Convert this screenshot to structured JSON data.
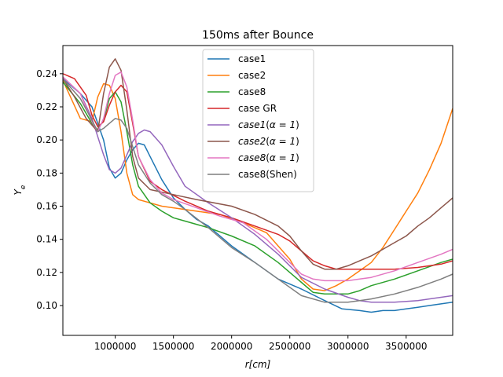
{
  "chart_data": {
    "type": "line",
    "title": "150ms after Bounce",
    "xlabel": "r[cm]",
    "ylabel": "Y_e",
    "xlim": [
      550000,
      3900000
    ],
    "ylim": [
      0.082,
      0.257
    ],
    "xticks": [
      1000000,
      1500000,
      2000000,
      2500000,
      3000000,
      3500000
    ],
    "xtick_labels": [
      "1000000",
      "1500000",
      "2000000",
      "2500000",
      "3000000",
      "3500000"
    ],
    "yticks": [
      0.1,
      0.12,
      0.14,
      0.16,
      0.18,
      0.2,
      0.22,
      0.24
    ],
    "ytick_labels": [
      "0.10",
      "0.12",
      "0.14",
      "0.16",
      "0.18",
      "0.20",
      "0.22",
      "0.24"
    ],
    "grid": false,
    "legend_position": "top-center",
    "series": [
      {
        "name": "case1",
        "color": "#1f77b4",
        "x": [
          550000,
          700000,
          800000,
          900000,
          950000,
          1000000,
          1050000,
          1100000,
          1150000,
          1200000,
          1250000,
          1300000,
          1400000,
          1500000,
          1600000,
          1700000,
          1800000,
          2000000,
          2200000,
          2400000,
          2600000,
          2800000,
          2950000,
          3100000,
          3200000,
          3300000,
          3400000,
          3500000,
          3600000,
          3700000,
          3800000,
          3900000
        ],
        "y": [
          0.237,
          0.228,
          0.22,
          0.2,
          0.183,
          0.177,
          0.18,
          0.188,
          0.194,
          0.198,
          0.197,
          0.19,
          0.176,
          0.165,
          0.158,
          0.152,
          0.148,
          0.136,
          0.126,
          0.116,
          0.11,
          0.103,
          0.098,
          0.097,
          0.096,
          0.097,
          0.097,
          0.098,
          0.099,
          0.1,
          0.101,
          0.102
        ]
      },
      {
        "name": "case2",
        "color": "#ff7f0e",
        "x": [
          550000,
          700000,
          800000,
          850000,
          900000,
          950000,
          1000000,
          1050000,
          1100000,
          1150000,
          1200000,
          1300000,
          1400000,
          1500000,
          1700000,
          1900000,
          2100000,
          2300000,
          2500000,
          2600000,
          2700000,
          2800000,
          2900000,
          3000000,
          3100000,
          3200000,
          3300000,
          3400000,
          3500000,
          3600000,
          3700000,
          3800000,
          3900000
        ],
        "y": [
          0.236,
          0.213,
          0.211,
          0.226,
          0.234,
          0.233,
          0.225,
          0.205,
          0.18,
          0.167,
          0.164,
          0.162,
          0.16,
          0.159,
          0.157,
          0.155,
          0.15,
          0.144,
          0.128,
          0.116,
          0.11,
          0.109,
          0.112,
          0.116,
          0.121,
          0.126,
          0.135,
          0.146,
          0.157,
          0.168,
          0.182,
          0.198,
          0.219
        ]
      },
      {
        "name": "case8",
        "color": "#2ca02c",
        "x": [
          550000,
          700000,
          800000,
          850000,
          900000,
          950000,
          1000000,
          1050000,
          1100000,
          1150000,
          1200000,
          1300000,
          1400000,
          1500000,
          1600000,
          1800000,
          2000000,
          2200000,
          2400000,
          2600000,
          2700000,
          2800000,
          2900000,
          3000000,
          3100000,
          3200000,
          3400000,
          3600000,
          3800000,
          3900000
        ],
        "y": [
          0.235,
          0.222,
          0.21,
          0.206,
          0.212,
          0.225,
          0.229,
          0.223,
          0.205,
          0.185,
          0.172,
          0.162,
          0.157,
          0.153,
          0.151,
          0.147,
          0.142,
          0.136,
          0.126,
          0.114,
          0.108,
          0.107,
          0.107,
          0.107,
          0.109,
          0.112,
          0.116,
          0.121,
          0.126,
          0.128
        ]
      },
      {
        "name": "case GR",
        "color": "#d62728",
        "x": [
          550000,
          650000,
          750000,
          800000,
          850000,
          900000,
          950000,
          1000000,
          1050000,
          1100000,
          1150000,
          1200000,
          1300000,
          1400000,
          1600000,
          1800000,
          2000000,
          2200000,
          2400000,
          2500000,
          2600000,
          2700000,
          2800000,
          2900000,
          3000000,
          3200000,
          3400000,
          3600000,
          3800000,
          3900000
        ],
        "y": [
          0.24,
          0.237,
          0.227,
          0.215,
          0.208,
          0.211,
          0.221,
          0.229,
          0.233,
          0.229,
          0.21,
          0.19,
          0.175,
          0.17,
          0.163,
          0.157,
          0.153,
          0.148,
          0.143,
          0.139,
          0.133,
          0.127,
          0.124,
          0.122,
          0.122,
          0.122,
          0.122,
          0.123,
          0.125,
          0.127
        ]
      },
      {
        "name": "$case1(\\alpha=1)$",
        "color": "#9467bd",
        "x": [
          550000,
          700000,
          800000,
          900000,
          950000,
          1000000,
          1050000,
          1100000,
          1150000,
          1200000,
          1250000,
          1300000,
          1400000,
          1500000,
          1600000,
          1800000,
          2000000,
          2200000,
          2400000,
          2600000,
          2800000,
          3000000,
          3100000,
          3200000,
          3400000,
          3600000,
          3800000,
          3900000
        ],
        "y": [
          0.238,
          0.228,
          0.213,
          0.191,
          0.182,
          0.18,
          0.183,
          0.191,
          0.199,
          0.204,
          0.206,
          0.205,
          0.197,
          0.184,
          0.172,
          0.162,
          0.153,
          0.143,
          0.131,
          0.117,
          0.11,
          0.105,
          0.103,
          0.102,
          0.102,
          0.103,
          0.105,
          0.106
        ]
      },
      {
        "name": "$case2(\\alpha=1)$",
        "color": "#8c564b",
        "x": [
          550000,
          650000,
          750000,
          850000,
          900000,
          950000,
          1000000,
          1050000,
          1100000,
          1150000,
          1200000,
          1300000,
          1500000,
          1700000,
          2000000,
          2200000,
          2400000,
          2500000,
          2600000,
          2700000,
          2800000,
          2900000,
          3000000,
          3100000,
          3200000,
          3300000,
          3400000,
          3500000,
          3600000,
          3700000,
          3800000,
          3900000
        ],
        "y": [
          0.237,
          0.226,
          0.213,
          0.205,
          0.228,
          0.244,
          0.249,
          0.242,
          0.218,
          0.19,
          0.177,
          0.17,
          0.167,
          0.164,
          0.16,
          0.155,
          0.148,
          0.142,
          0.133,
          0.125,
          0.122,
          0.122,
          0.124,
          0.127,
          0.13,
          0.134,
          0.138,
          0.142,
          0.148,
          0.153,
          0.159,
          0.165
        ]
      },
      {
        "name": "$case8(\\alpha=1)$",
        "color": "#e377c2",
        "x": [
          550000,
          700000,
          800000,
          850000,
          900000,
          950000,
          1000000,
          1050000,
          1100000,
          1150000,
          1200000,
          1300000,
          1400000,
          1500000,
          1700000,
          1900000,
          2100000,
          2300000,
          2500000,
          2600000,
          2700000,
          2800000,
          2900000,
          3000000,
          3100000,
          3200000,
          3400000,
          3600000,
          3800000,
          3900000
        ],
        "y": [
          0.238,
          0.228,
          0.211,
          0.205,
          0.213,
          0.228,
          0.239,
          0.241,
          0.232,
          0.212,
          0.19,
          0.176,
          0.168,
          0.164,
          0.159,
          0.154,
          0.15,
          0.14,
          0.126,
          0.119,
          0.116,
          0.115,
          0.115,
          0.115,
          0.116,
          0.117,
          0.121,
          0.126,
          0.131,
          0.134
        ]
      },
      {
        "name": "case8(Shen)",
        "color": "#7f7f7f",
        "x": [
          550000,
          700000,
          800000,
          850000,
          900000,
          950000,
          1000000,
          1050000,
          1100000,
          1150000,
          1200000,
          1300000,
          1400000,
          1500000,
          1600000,
          1800000,
          2000000,
          2200000,
          2400000,
          2600000,
          2800000,
          3000000,
          3100000,
          3200000,
          3400000,
          3600000,
          3800000,
          3900000
        ],
        "y": [
          0.237,
          0.225,
          0.212,
          0.205,
          0.207,
          0.21,
          0.213,
          0.212,
          0.207,
          0.196,
          0.185,
          0.174,
          0.167,
          0.163,
          0.158,
          0.147,
          0.135,
          0.126,
          0.116,
          0.106,
          0.102,
          0.102,
          0.103,
          0.104,
          0.107,
          0.111,
          0.116,
          0.119
        ]
      }
    ]
  }
}
